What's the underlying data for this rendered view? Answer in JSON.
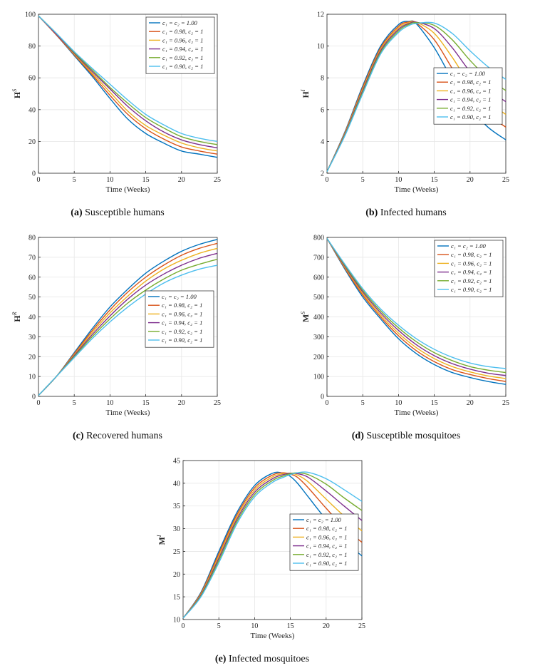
{
  "chart_data": [
    {
      "type": "line",
      "id": "a",
      "caption_tag": "(a)",
      "caption_text": "Susceptible humans",
      "ylabel_main": "H",
      "ylabel_sup": "S",
      "xlabel": "Time (Weeks)",
      "xlim": [
        0,
        25
      ],
      "ylim": [
        0,
        100
      ],
      "xticks": [
        0,
        5,
        10,
        15,
        20,
        25
      ],
      "yticks": [
        0,
        20,
        40,
        60,
        80,
        100
      ],
      "legend_position": "top-right",
      "legend": [
        "c₁ = c₂ = 1.00",
        "c₁ = 0.98, c₂ = 1",
        "c₁ = 0.96, c₂ = 1",
        "c₁ = 0.94, c₂ = 1",
        "c₁ = 0.92, c₂ = 1",
        "c₁ = 0.90, c₂ = 1"
      ],
      "series_colors": [
        "#0072BD",
        "#D95319",
        "#EDB120",
        "#7E2F8E",
        "#77AC30",
        "#4DBEEE"
      ],
      "x": [
        0,
        2.5,
        5,
        7.5,
        10,
        12.5,
        15,
        17.5,
        20,
        22.5,
        25
      ],
      "series": [
        {
          "name": "c1=c2=1.00",
          "values": [
            99,
            87,
            74,
            61,
            47,
            34,
            25,
            19,
            14,
            12,
            10
          ]
        },
        {
          "name": "c1=0.98",
          "values": [
            99,
            87,
            74.5,
            62,
            49,
            37,
            28,
            21.5,
            16.5,
            14,
            12
          ]
        },
        {
          "name": "c1=0.96",
          "values": [
            99,
            87.5,
            75,
            63,
            51,
            39,
            30,
            24,
            19,
            16,
            14
          ]
        },
        {
          "name": "c1=0.94",
          "values": [
            99,
            87.5,
            75.5,
            64,
            53,
            42,
            33,
            26,
            21,
            18,
            16
          ]
        },
        {
          "name": "c1=0.92",
          "values": [
            99,
            88,
            76,
            65,
            54,
            44,
            35,
            28.5,
            23,
            20,
            18
          ]
        },
        {
          "name": "c1=0.90",
          "values": [
            99,
            88,
            76.5,
            66,
            56,
            46,
            37,
            30.5,
            25,
            22,
            20
          ]
        }
      ]
    },
    {
      "type": "line",
      "id": "b",
      "caption_tag": "(b)",
      "caption_text": "Infected humans",
      "ylabel_main": "H",
      "ylabel_sup": "I",
      "xlabel": "Time (Weeks)",
      "xlim": [
        0,
        25
      ],
      "ylim": [
        2,
        12
      ],
      "xticks": [
        0,
        5,
        10,
        15,
        20,
        25
      ],
      "yticks": [
        2,
        4,
        6,
        8,
        10,
        12
      ],
      "legend_position": "middle-right",
      "legend": [
        "c₁ = c₂ = 1.00",
        "c₁ = 0.98, c₂ = 1",
        "c₁ = 0.96, c₂ = 1",
        "c₁ = 0.94, c₂ = 1",
        "c₁ = 0.92, c₂ = 1",
        "c₁ = 0.90, c₂ = 1"
      ],
      "series_colors": [
        "#0072BD",
        "#D95319",
        "#EDB120",
        "#7E2F8E",
        "#77AC30",
        "#4DBEEE"
      ],
      "x": [
        0,
        2.5,
        5,
        7.5,
        10,
        11.5,
        12.5,
        15,
        17.5,
        20,
        22.5,
        25
      ],
      "series": [
        {
          "name": "c1=c2=1.00",
          "values": [
            2.1,
            4.6,
            7.5,
            10,
            11.35,
            11.55,
            11.4,
            9.9,
            7.9,
            6.1,
            4.9,
            4.1
          ]
        },
        {
          "name": "c1=0.98",
          "values": [
            2.1,
            4.55,
            7.4,
            9.9,
            11.25,
            11.52,
            11.45,
            10.4,
            8.6,
            6.9,
            5.7,
            4.9
          ]
        },
        {
          "name": "c1=0.96",
          "values": [
            2.1,
            4.5,
            7.3,
            9.8,
            11.15,
            11.47,
            11.5,
            10.8,
            9.3,
            7.6,
            6.5,
            5.7
          ]
        },
        {
          "name": "c1=0.94",
          "values": [
            2.1,
            4.45,
            7.2,
            9.7,
            11.05,
            11.42,
            11.5,
            11.1,
            9.9,
            8.4,
            7.3,
            6.5
          ]
        },
        {
          "name": "c1=0.92",
          "values": [
            2.1,
            4.4,
            7.1,
            9.6,
            10.95,
            11.37,
            11.47,
            11.3,
            10.4,
            9.1,
            8.0,
            7.2
          ]
        },
        {
          "name": "c1=0.90",
          "values": [
            2.1,
            4.35,
            7.0,
            9.5,
            10.85,
            11.3,
            11.42,
            11.45,
            10.8,
            9.7,
            8.7,
            7.9
          ]
        }
      ]
    },
    {
      "type": "line",
      "id": "c",
      "caption_tag": "(c)",
      "caption_text": "Recovered humans",
      "ylabel_main": "H",
      "ylabel_sup": "R",
      "xlabel": "Time (Weeks)",
      "xlim": [
        0,
        25
      ],
      "ylim": [
        0,
        80
      ],
      "xticks": [
        0,
        5,
        10,
        15,
        20,
        25
      ],
      "yticks": [
        0,
        10,
        20,
        30,
        40,
        50,
        60,
        70,
        80
      ],
      "legend_position": "middle-right",
      "legend": [
        "c₁ = c₂ = 1.00",
        "c₁ = 0.98, c₂ = 1",
        "c₁ = 0.96, c₂ = 1",
        "c₁ = 0.94, c₂ = 1",
        "c₁ = 0.92, c₂ = 1",
        "c₁ = 0.90, c₂ = 1"
      ],
      "series_colors": [
        "#0072BD",
        "#D95319",
        "#EDB120",
        "#7E2F8E",
        "#77AC30",
        "#4DBEEE"
      ],
      "x": [
        0,
        2.5,
        5,
        7.5,
        10,
        12.5,
        15,
        17.5,
        20,
        22.5,
        25
      ],
      "series": [
        {
          "name": "c1=c2=1.00",
          "values": [
            0.5,
            10,
            22,
            34,
            45,
            54,
            62,
            68,
            73,
            76.5,
            79
          ]
        },
        {
          "name": "c1=0.98",
          "values": [
            0.5,
            10,
            21.5,
            33,
            43.5,
            52.5,
            60,
            66,
            71,
            74.5,
            77
          ]
        },
        {
          "name": "c1=0.96",
          "values": [
            0.5,
            10,
            21,
            32,
            42,
            50.5,
            58,
            64,
            68.5,
            72,
            74.5
          ]
        },
        {
          "name": "c1=0.94",
          "values": [
            0.5,
            10,
            20.5,
            31,
            40.5,
            49,
            56,
            61.5,
            66,
            69.5,
            72
          ]
        },
        {
          "name": "c1=0.92",
          "values": [
            0.5,
            10,
            20,
            30,
            39,
            47,
            53.5,
            59,
            63.5,
            66.5,
            69
          ]
        },
        {
          "name": "c1=0.90",
          "values": [
            0.5,
            10,
            19.5,
            29,
            37.5,
            45,
            51.5,
            57,
            61,
            64,
            66
          ]
        }
      ]
    },
    {
      "type": "line",
      "id": "d",
      "caption_tag": "(d)",
      "caption_text": "Susceptible mosquitoes",
      "ylabel_main": "M",
      "ylabel_sup": "S",
      "xlabel": "Time (Weeks)",
      "xlim": [
        0,
        25
      ],
      "ylim": [
        0,
        800
      ],
      "xticks": [
        0,
        5,
        10,
        15,
        20,
        25
      ],
      "yticks": [
        0,
        100,
        200,
        300,
        400,
        500,
        600,
        700,
        800
      ],
      "legend_position": "top-right",
      "legend": [
        "c₁ = c₂ = 1.00",
        "c₁ = 0.98, c₂ = 1",
        "c₁ = 0.96, c₂ = 1",
        "c₁ = 0.94, c₂ = 1",
        "c₁ = 0.92, c₂ = 1",
        "c₁ = 0.90, c₂ = 1"
      ],
      "series_colors": [
        "#0072BD",
        "#D95319",
        "#EDB120",
        "#7E2F8E",
        "#77AC30",
        "#4DBEEE"
      ],
      "x": [
        0,
        2.5,
        5,
        7.5,
        10,
        12.5,
        15,
        17.5,
        20,
        22.5,
        25
      ],
      "series": [
        {
          "name": "c1=c2=1.00",
          "values": [
            795,
            640,
            500,
            390,
            290,
            215,
            160,
            120,
            95,
            75,
            60
          ]
        },
        {
          "name": "c1=0.98",
          "values": [
            795,
            645,
            510,
            400,
            305,
            230,
            175,
            135,
            110,
            90,
            75
          ]
        },
        {
          "name": "c1=0.96",
          "values": [
            795,
            650,
            518,
            410,
            318,
            245,
            190,
            150,
            123,
            103,
            90
          ]
        },
        {
          "name": "c1=0.94",
          "values": [
            795,
            655,
            526,
            420,
            332,
            260,
            205,
            165,
            137,
            117,
            105
          ]
        },
        {
          "name": "c1=0.92",
          "values": [
            795,
            660,
            534,
            430,
            345,
            275,
            220,
            180,
            150,
            132,
            120
          ]
        },
        {
          "name": "c1=0.90",
          "values": [
            795,
            665,
            542,
            440,
            358,
            290,
            237,
            197,
            168,
            150,
            140
          ]
        }
      ]
    },
    {
      "type": "line",
      "id": "e",
      "caption_tag": "(e)",
      "caption_text": "Infected mosquitoes",
      "ylabel_main": "M",
      "ylabel_sup": "I",
      "xlabel": "Time (Weeks)",
      "xlim": [
        0,
        25
      ],
      "ylim": [
        10,
        45
      ],
      "xticks": [
        0,
        5,
        10,
        15,
        20,
        25
      ],
      "yticks": [
        10,
        15,
        20,
        25,
        30,
        35,
        40,
        45
      ],
      "legend_position": "middle-right",
      "legend": [
        "c₁ = c₂ = 1.00",
        "c₁ = 0.98, c₂ = 1",
        "c₁ = 0.96, c₂ = 1",
        "c₁ = 0.94, c₂ = 1",
        "c₁ = 0.92, c₂ = 1",
        "c₁ = 0.90, c₂ = 1"
      ],
      "series_colors": [
        "#0072BD",
        "#D95319",
        "#EDB120",
        "#7E2F8E",
        "#77AC30",
        "#4DBEEE"
      ],
      "x": [
        0,
        2.5,
        5,
        7.5,
        10,
        12.5,
        14,
        15,
        16,
        17.5,
        20,
        22.5,
        25
      ],
      "series": [
        {
          "name": "c1=c2=1.00",
          "values": [
            10.3,
            16,
            25,
            33.5,
            39.5,
            42.2,
            42.2,
            41.5,
            40,
            37,
            32,
            27.5,
            24
          ]
        },
        {
          "name": "c1=0.98",
          "values": [
            10.3,
            15.8,
            24.5,
            33,
            39,
            41.8,
            42.3,
            42,
            41.3,
            39,
            34.5,
            30.3,
            27
          ]
        },
        {
          "name": "c1=0.96",
          "values": [
            10.3,
            15.6,
            24,
            32.5,
            38.5,
            41.4,
            42.1,
            42.2,
            41.8,
            40.3,
            36.5,
            32.8,
            29.5
          ]
        },
        {
          "name": "c1=0.94",
          "values": [
            10.3,
            15.4,
            23.5,
            32,
            38,
            41,
            41.9,
            42.2,
            42.1,
            41.3,
            38.3,
            35,
            31.8
          ]
        },
        {
          "name": "c1=0.92",
          "values": [
            10.3,
            15.2,
            23,
            31.5,
            37.5,
            40.6,
            41.6,
            42.1,
            42.3,
            41.9,
            39.8,
            36.8,
            34
          ]
        },
        {
          "name": "c1=0.90",
          "values": [
            10.3,
            15,
            22.5,
            31,
            37,
            40.2,
            41.3,
            41.9,
            42.3,
            42.4,
            41,
            38.6,
            36
          ]
        }
      ]
    }
  ]
}
